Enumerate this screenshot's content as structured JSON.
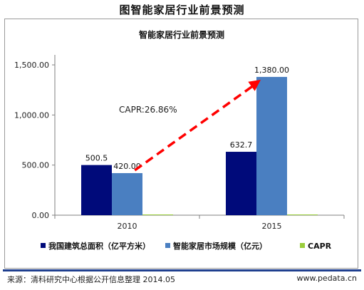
{
  "page_title": "图智能家居行业前景预测",
  "chart_data": {
    "type": "bar",
    "title": "智能家居行业前景预测",
    "categories": [
      "2010",
      "2015"
    ],
    "series": [
      {
        "name": "我国建筑总面积（亿平方米）",
        "values": [
          500.5,
          632.7
        ],
        "labels": [
          "500.5",
          "632.7"
        ],
        "color": "#000a7a"
      },
      {
        "name": "智能家居市场规模（亿元）",
        "values": [
          420.0,
          1380.0
        ],
        "labels": [
          "420.00",
          "1,380.00"
        ],
        "color": "#4a7fc1"
      },
      {
        "name": "CAPR",
        "values": [
          0,
          0
        ],
        "labels": [
          "",
          ""
        ],
        "color": "#9acd3c"
      }
    ],
    "yticks": [
      "0.00",
      "500.00",
      "1,000.00",
      "1,500.00"
    ],
    "ylim": [
      0,
      1600
    ],
    "annotation": "CAPR:26.86%",
    "arrow_color": "#ff0000"
  },
  "footer": {
    "source": "来源：清科研究中心根据公开信息整理 2014.05",
    "url": "www.pedata.cn"
  }
}
